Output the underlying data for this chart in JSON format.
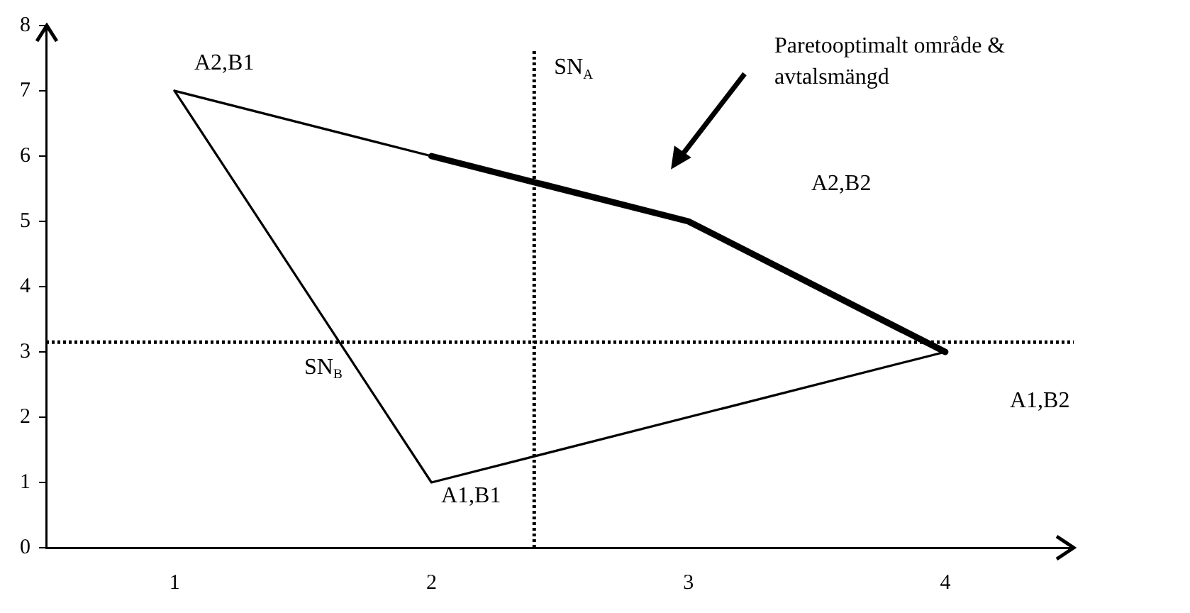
{
  "chart_data": {
    "type": "line",
    "xlim": [
      0.5,
      4.5
    ],
    "ylim": [
      0,
      8
    ],
    "xticks": [
      1,
      2,
      3,
      4
    ],
    "yticks": [
      0,
      1,
      2,
      3,
      4,
      5,
      6,
      7,
      8
    ],
    "grid": false,
    "legend": false,
    "marker": "none",
    "line_style": "solid",
    "series": [
      {
        "x": [
          1,
          2
        ],
        "values": [
          7,
          6
        ],
        "color": "#000000"
      },
      {
        "x": [
          1,
          2,
          4
        ],
        "values": [
          7,
          1,
          3
        ],
        "color": "#000000"
      },
      {
        "x": [
          2,
          3,
          4
        ],
        "values": [
          6,
          5,
          3
        ],
        "color": "#000000"
      }
    ],
    "ref_lines": [
      {
        "axis": "x",
        "value": 2.4,
        "label": "SN$_{A}$",
        "line_style": "dotted",
        "color": "#000000"
      },
      {
        "axis": "y",
        "value": 3.15,
        "label": "SN$_{B}$",
        "line_style": "dotted",
        "color": "#000000"
      }
    ],
    "annotations": [
      "A2,B1",
      "Paretooptimalt område & avtalsmängd",
      "A2,B2",
      "A1,B2",
      "A1,B1"
    ]
  }
}
